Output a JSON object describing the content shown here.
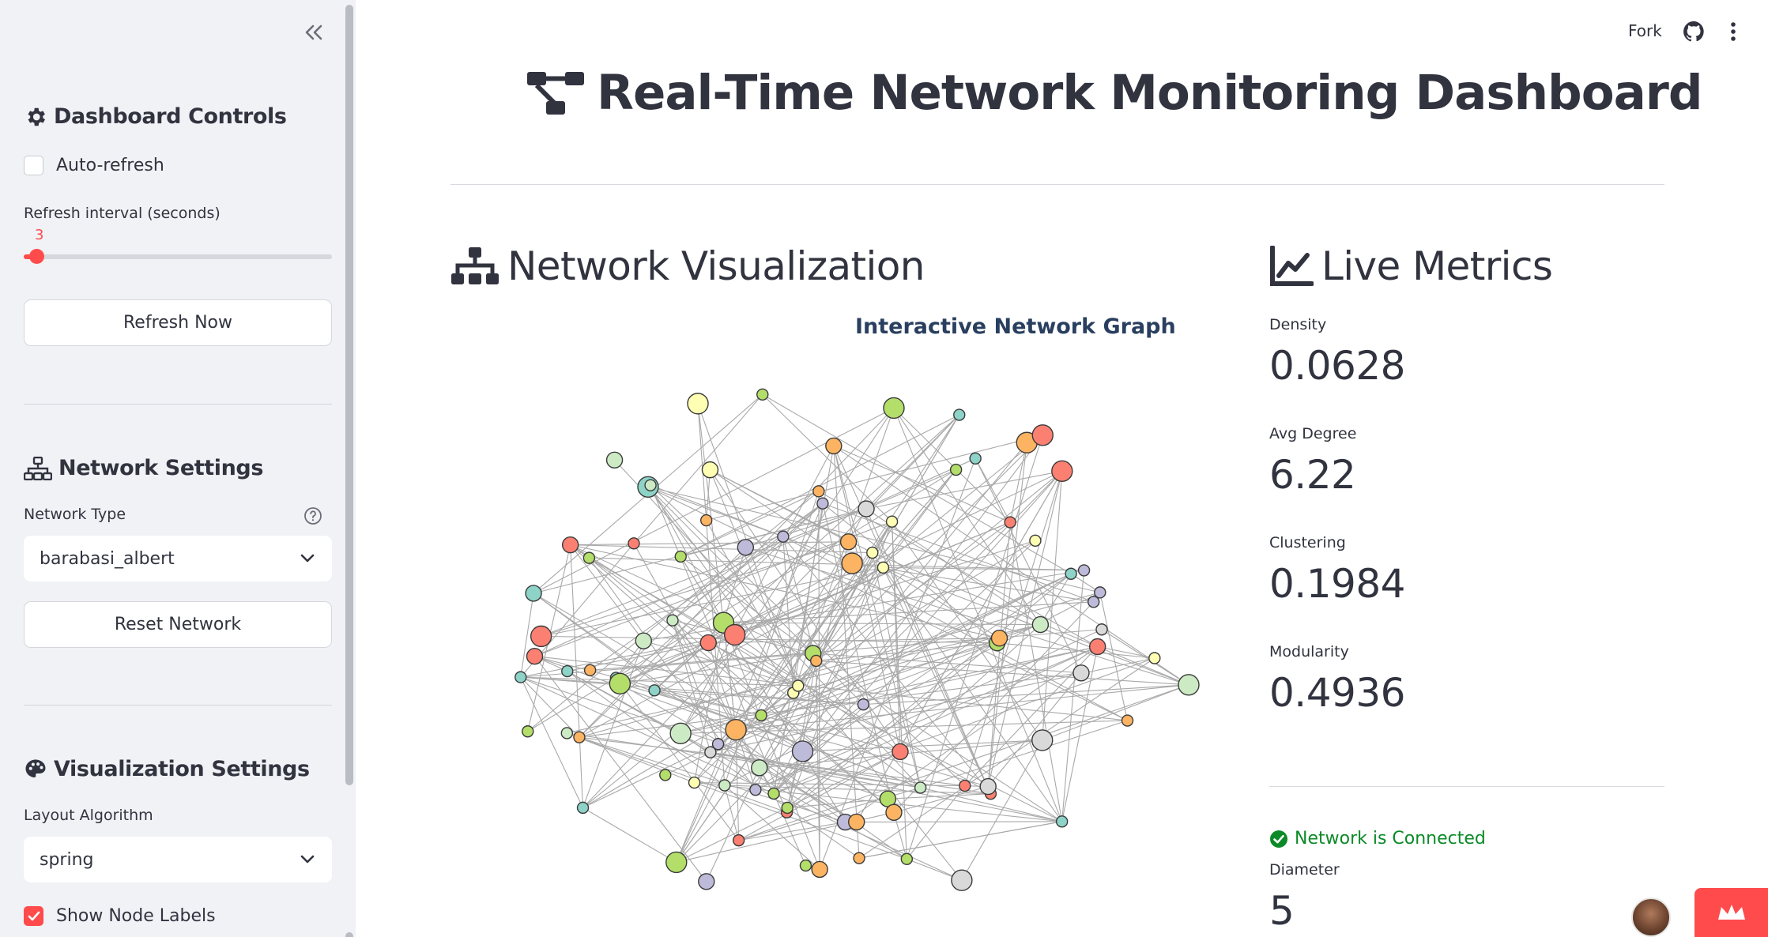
{
  "sidebar": {
    "controls_heading": "Dashboard Controls",
    "auto_refresh_label": "Auto-refresh",
    "auto_refresh_checked": false,
    "refresh_interval_label": "Refresh interval (seconds)",
    "refresh_interval_value": "3",
    "refresh_interval_fraction": 0.04,
    "refresh_now_label": "Refresh Now",
    "network_heading": "Network Settings",
    "network_type_label": "Network Type",
    "network_type_value": "barabasi_albert",
    "reset_network_label": "Reset Network",
    "viz_heading": "Visualization Settings",
    "layout_label": "Layout Algorithm",
    "layout_value": "spring",
    "show_labels_label": "Show Node Labels",
    "show_labels_checked": true
  },
  "header": {
    "fork_label": "Fork",
    "github_icon": "github-icon",
    "menu_icon": "kebab-menu-icon"
  },
  "main": {
    "title": "Real-Time Network Monitoring Dashboard",
    "network_section_title": "Network Visualization",
    "graph_title": "Interactive Network Graph",
    "metrics_section_title": "Live Metrics",
    "metrics": [
      {
        "label": "Density",
        "value": "0.0628"
      },
      {
        "label": "Avg Degree",
        "value": "6.22"
      },
      {
        "label": "Clustering",
        "value": "0.1984"
      },
      {
        "label": "Modularity",
        "value": "0.4936"
      }
    ],
    "status_text": "Network is Connected",
    "diameter_label": "Diameter",
    "diameter_value": "5"
  },
  "colors": {
    "accent": "#ff4b4b",
    "sidebar_bg": "#f0f2f6",
    "text": "#31333f",
    "success": "#0b8a27",
    "edge": "#a9a9a9",
    "node_palette": [
      "#8dd3c7",
      "#ffffb3",
      "#fb8072",
      "#b3de69",
      "#fdb462",
      "#bebada",
      "#ccebc5",
      "#d9d9d9"
    ]
  }
}
